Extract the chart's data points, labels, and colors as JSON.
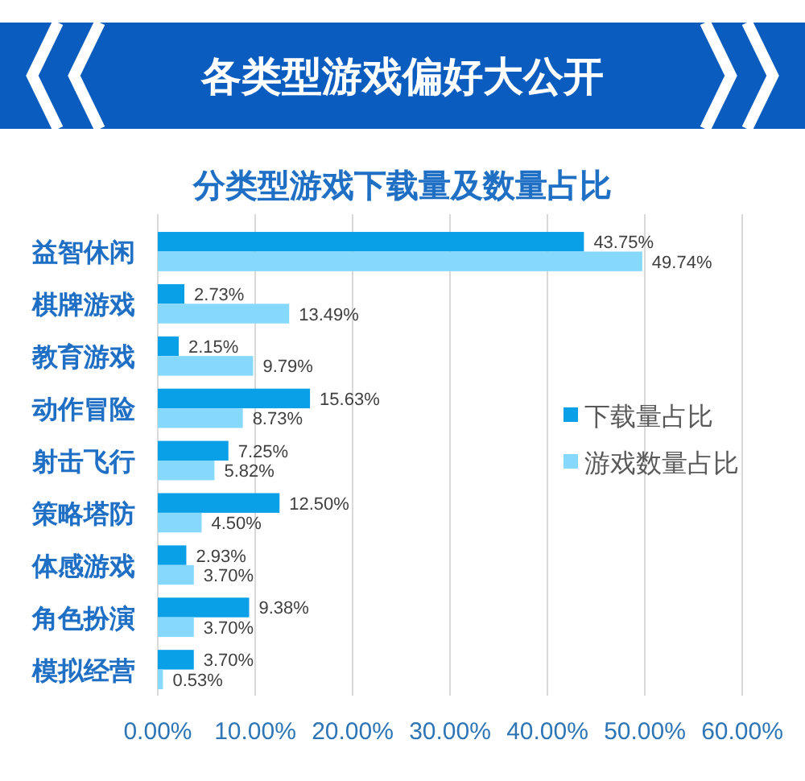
{
  "chart_data": {
    "type": "bar",
    "orientation": "horizontal",
    "title": "各类型游戏偏好大公开",
    "subtitle": "分类型游戏下载量及数量占比",
    "categories": [
      "益智休闲",
      "棋牌游戏",
      "教育游戏",
      "动作冒险",
      "射击飞行",
      "策略塔防",
      "体感游戏",
      "角色扮演",
      "模拟经营"
    ],
    "series": [
      {
        "name": "下载量占比",
        "color": "#0aa0e8",
        "values": [
          43.75,
          2.73,
          2.15,
          15.63,
          7.25,
          12.5,
          2.93,
          9.38,
          3.7
        ],
        "value_labels": [
          "43.75%",
          "2.73%",
          "2.15%",
          "15.63%",
          "7.25%",
          "12.50%",
          "2.93%",
          "9.38%",
          "3.70%"
        ]
      },
      {
        "name": "游戏数量占比",
        "color": "#86d9fc",
        "values": [
          49.74,
          13.49,
          9.79,
          8.73,
          5.82,
          4.5,
          3.7,
          3.7,
          0.53
        ],
        "value_labels": [
          "49.74%",
          "13.49%",
          "9.79%",
          "8.73%",
          "5.82%",
          "4.50%",
          "3.70%",
          "3.70%",
          "0.53%"
        ]
      }
    ],
    "xlim": [
      0,
      60
    ],
    "xticks": [
      {
        "value": 0,
        "label": "0.00%"
      },
      {
        "value": 10,
        "label": "10.00%"
      },
      {
        "value": 20,
        "label": "20.00%"
      },
      {
        "value": 30,
        "label": "30.00%"
      },
      {
        "value": 40,
        "label": "40.00%"
      },
      {
        "value": 50,
        "label": "50.00%"
      },
      {
        "value": 60,
        "label": "60.00%"
      }
    ],
    "grid": "x",
    "legend": "right"
  }
}
